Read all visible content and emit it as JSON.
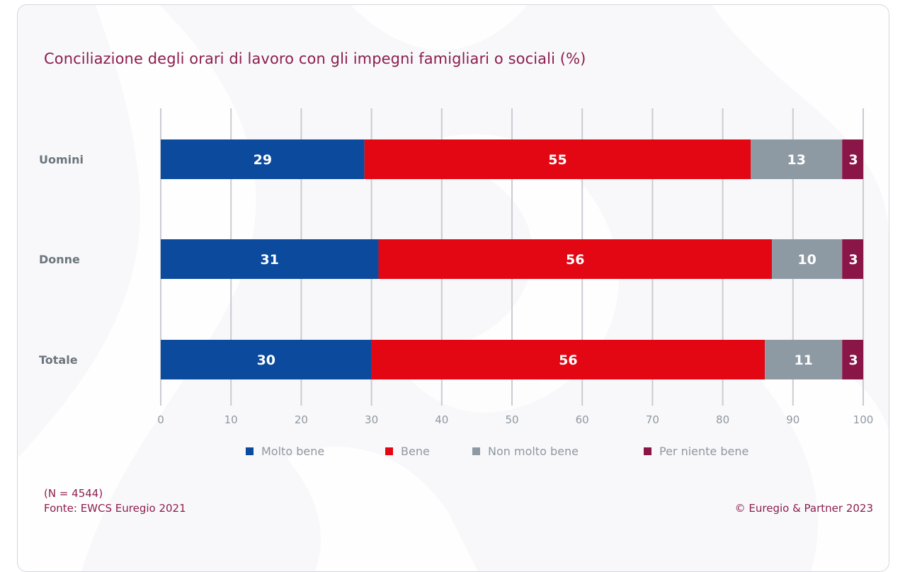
{
  "chart_data": {
    "type": "bar",
    "orientation": "horizontal",
    "stacked": true,
    "title": "Conciliazione degli orari di lavoro con gli impegni famigliari o sociali (%)",
    "categories": [
      "Uomini",
      "Donne",
      "Totale"
    ],
    "series": [
      {
        "name": "Molto bene",
        "color": "#0b4a9c",
        "values": [
          29,
          31,
          30
        ]
      },
      {
        "name": "Bene",
        "color": "#e30613",
        "values": [
          55,
          56,
          56
        ]
      },
      {
        "name": "Non molto bene",
        "color": "#8e9aa3",
        "values": [
          13,
          10,
          11
        ]
      },
      {
        "name": "Per niente bene",
        "color": "#8a1547",
        "values": [
          3,
          3,
          3
        ]
      }
    ],
    "xlim": [
      0,
      100
    ],
    "xticks": [
      "0",
      "10",
      "20",
      "30",
      "40",
      "50",
      "60",
      "70",
      "80",
      "90",
      "100"
    ],
    "grid": true,
    "legend_position": "bottom"
  },
  "footer": {
    "sample": "(N = 4544)",
    "source": "Fonte: EWCS Euregio 2021",
    "copyright": "© Euregio & Partner 2023"
  }
}
